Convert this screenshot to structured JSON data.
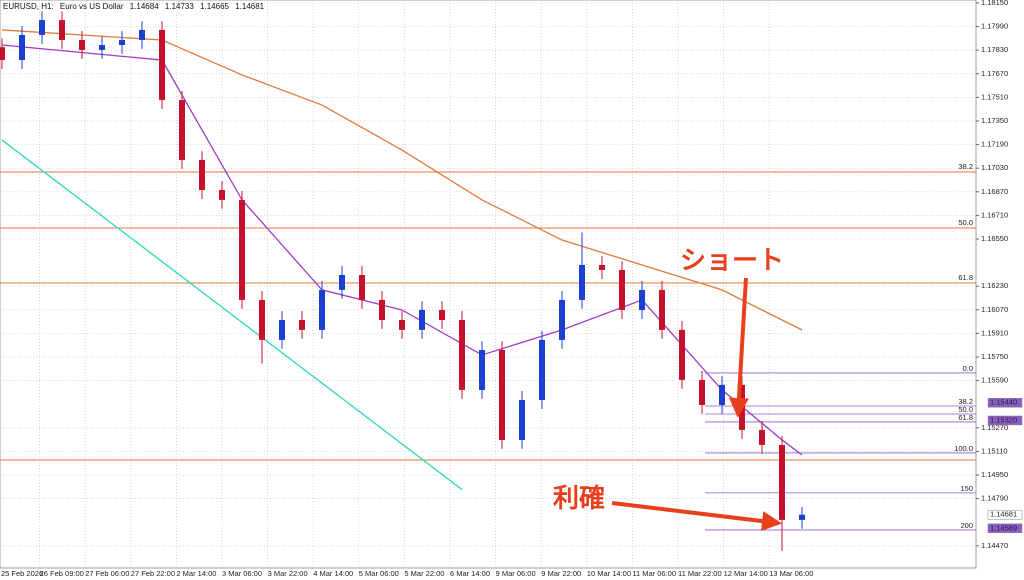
{
  "chart_data": {
    "type": "candlestick",
    "title": "EURUSD, H1:",
    "subtitle": "Euro vs US Dollar",
    "header_values": [
      1.14684,
      1.14733,
      1.14665,
      1.14681
    ],
    "time_labels": [
      "25 Feb 2026",
      "26 Feb 09:00",
      "27 Feb 06:00",
      "27 Feb 22:00",
      "2 Mar 14:00",
      "3 Mar 06:00",
      "3 Mar 22:00",
      "4 Mar 14:00",
      "5 Mar 06:00",
      "5 Mar 22:00",
      "6 Mar 14:00",
      "9 Mar 06:00",
      "9 Mar 22:00",
      "10 Mar 14:00",
      "11 Mar 06:00",
      "11 Mar 22:00",
      "12 Mar 14:00",
      "13 Mar 06:00"
    ],
    "up_color": "#1b3fcf",
    "down_color": "#c4122c",
    "open": [
      1.1785,
      1.17763,
      1.17933,
      1.18034,
      1.17899,
      1.17831,
      1.17865,
      1.17899,
      1.17967,
      1.17492,
      1.17086,
      1.16882,
      1.16815,
      1.16137,
      1.15866,
      1.16001,
      1.15934,
      1.16205,
      1.16306,
      1.16137,
      1.16001,
      1.15934,
      1.16069,
      1.16001,
      1.15527,
      1.15798,
      1.15188,
      1.15459,
      1.15866,
      1.16137,
      1.16374,
      1.1634,
      1.16069,
      1.16205,
      1.15934,
      1.15595,
      1.15425,
      1.15561,
      1.15256,
      1.15154,
      1.14646
    ],
    "high": [
      1.1791,
      1.17993,
      1.18094,
      1.18094,
      1.17959,
      1.17925,
      1.17959,
      1.18027,
      1.18027,
      1.17552,
      1.17146,
      1.16942,
      1.16875,
      1.16197,
      1.16061,
      1.16061,
      1.16265,
      1.16366,
      1.16366,
      1.16197,
      1.16061,
      1.16129,
      1.16129,
      1.16061,
      1.15858,
      1.15858,
      1.15519,
      1.15926,
      1.16197,
      1.16594,
      1.16434,
      1.164,
      1.16265,
      1.16265,
      1.15994,
      1.15655,
      1.15621,
      1.15621,
      1.15316,
      1.15214,
      1.14733
    ],
    "low": [
      1.17703,
      1.17703,
      1.17873,
      1.17839,
      1.17771,
      1.17771,
      1.17805,
      1.17839,
      1.17432,
      1.17026,
      1.16822,
      1.16755,
      1.16077,
      1.15706,
      1.15806,
      1.15874,
      1.15874,
      1.16145,
      1.16077,
      1.15941,
      1.15874,
      1.15874,
      1.15941,
      1.15467,
      1.15467,
      1.15128,
      1.15128,
      1.15399,
      1.15806,
      1.16077,
      1.1628,
      1.16009,
      1.16009,
      1.15874,
      1.15535,
      1.15365,
      1.15365,
      1.15196,
      1.15094,
      1.14436,
      1.14586
    ],
    "close": [
      1.17763,
      1.17933,
      1.18034,
      1.17899,
      1.17831,
      1.17865,
      1.17899,
      1.17967,
      1.17492,
      1.17086,
      1.16882,
      1.16815,
      1.16137,
      1.15866,
      1.16001,
      1.15934,
      1.16205,
      1.16306,
      1.16137,
      1.16001,
      1.15934,
      1.16069,
      1.16001,
      1.15527,
      1.15798,
      1.15188,
      1.15459,
      1.15866,
      1.16137,
      1.16374,
      1.1634,
      1.16069,
      1.16205,
      1.15934,
      1.15595,
      1.15425,
      1.15561,
      1.15256,
      1.15154,
      1.14646,
      1.14681
    ],
    "lines": [
      {
        "color": "#e07a3c",
        "x": [
          0,
          8,
          12,
          16,
          20,
          24,
          28,
          32,
          36,
          39,
          40
        ],
        "values": [
          1.17967,
          1.17899,
          1.17662,
          1.17458,
          1.17153,
          1.16815,
          1.16543,
          1.16374,
          1.16205,
          1.16001,
          1.15934
        ]
      },
      {
        "color": "#a03cc8",
        "x": [
          0,
          8,
          12,
          16,
          20,
          24,
          28,
          32,
          36,
          39,
          40
        ],
        "values": [
          1.17865,
          1.17763,
          1.16815,
          1.16205,
          1.16069,
          1.15764,
          1.15934,
          1.16137,
          1.15527,
          1.15188,
          1.15086
        ]
      },
      {
        "color": "#3ad6c0",
        "x": [
          0,
          23
        ],
        "values": [
          1.17221,
          1.14852
        ]
      }
    ],
    "orange_levels": [
      {
        "label": "38.2",
        "price": 1.17004
      },
      {
        "label": "50.0",
        "price": 1.16625
      },
      {
        "label": "61.8",
        "price": 1.16252
      }
    ],
    "support_level": 1.15052,
    "purple_levels": [
      {
        "label": "0.0",
        "price": 1.15642
      },
      {
        "label": "38.2",
        "price": 1.15418
      },
      {
        "label": "50.0",
        "price": 1.15364
      },
      {
        "label": "61.8",
        "price": 1.1531
      },
      {
        "label": "100.0",
        "price": 1.151
      },
      {
        "label": "150",
        "price": 1.14829
      },
      {
        "label": "200",
        "price": 1.14578
      }
    ],
    "price_boxes": [
      {
        "value": 1.1544,
        "label": "1.15440"
      },
      {
        "value": 1.1532,
        "label": "1.15320"
      },
      {
        "value": 1.14681,
        "label": "1.14681"
      },
      {
        "value": 1.14589,
        "label": "1.14589"
      }
    ],
    "annotations": [
      "ショート",
      "利確"
    ],
    "ylim": [
      1.1432,
      1.1817
    ],
    "yticks": [
      {
        "value": 1.1815,
        "label": "1.18150"
      },
      {
        "value": 1.1799,
        "label": "1.17990"
      },
      {
        "value": 1.1783,
        "label": "1.17830"
      },
      {
        "value": 1.1767,
        "label": "1.17670"
      },
      {
        "value": 1.1751,
        "label": "1.17510"
      },
      {
        "value": 1.1735,
        "label": "1.17350"
      },
      {
        "value": 1.1719,
        "label": "1.17190"
      },
      {
        "value": 1.1703,
        "label": "1.17030"
      },
      {
        "value": 1.1687,
        "label": "1.16870"
      },
      {
        "value": 1.1671,
        "label": "1.16710"
      },
      {
        "value": 1.1655,
        "label": "1.16550"
      },
      {
        "value": 1.1623,
        "label": "1.16230"
      },
      {
        "value": 1.1607,
        "label": "1.16070"
      },
      {
        "value": 1.1591,
        "label": "1.15910"
      },
      {
        "value": 1.1575,
        "label": "1.15750"
      },
      {
        "value": 1.1559,
        "label": "1.15590"
      },
      {
        "value": 1.1527,
        "label": "1.15270"
      },
      {
        "value": 1.1511,
        "label": "1.15110"
      },
      {
        "value": 1.1495,
        "label": "1.14950"
      },
      {
        "value": 1.1479,
        "label": "1.14790"
      },
      {
        "value": 1.1447,
        "label": "1.14470"
      }
    ],
    "grid": true
  }
}
